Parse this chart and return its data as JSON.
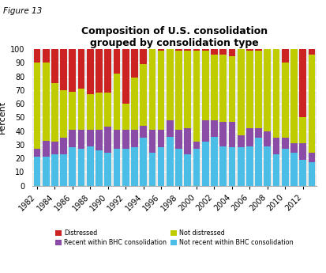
{
  "years": [
    1982,
    1983,
    1984,
    1985,
    1986,
    1987,
    1988,
    1989,
    1990,
    1991,
    1992,
    1993,
    1994,
    1995,
    1996,
    1997,
    1998,
    1999,
    2000,
    2001,
    2002,
    2003,
    2004,
    2005,
    2006,
    2007,
    2008,
    2009,
    2010,
    2011,
    2012,
    2013
  ],
  "not_recent_bhc": [
    21,
    21,
    23,
    23,
    28,
    27,
    29,
    26,
    24,
    27,
    27,
    28,
    35,
    24,
    28,
    36,
    27,
    23,
    27,
    32,
    36,
    29,
    28,
    28,
    29,
    35,
    29,
    23,
    27,
    24,
    19,
    17
  ],
  "recent_bhc": [
    6,
    12,
    9,
    12,
    13,
    14,
    12,
    15,
    19,
    14,
    14,
    13,
    9,
    17,
    13,
    12,
    14,
    19,
    5,
    16,
    12,
    18,
    19,
    9,
    13,
    7,
    11,
    12,
    8,
    7,
    12,
    7
  ],
  "not_distressed": [
    63,
    57,
    43,
    35,
    28,
    30,
    26,
    27,
    25,
    41,
    19,
    38,
    45,
    59,
    58,
    52,
    58,
    57,
    67,
    51,
    48,
    49,
    48,
    63,
    57,
    57,
    60,
    65,
    55,
    69,
    19,
    72
  ],
  "distressed": [
    10,
    10,
    25,
    30,
    31,
    29,
    33,
    32,
    32,
    18,
    40,
    21,
    11,
    0,
    1,
    0,
    1,
    1,
    1,
    1,
    4,
    4,
    5,
    0,
    1,
    1,
    0,
    0,
    10,
    0,
    50,
    4
  ],
  "colors": {
    "not_recent_bhc": "#4bbee8",
    "recent_bhc": "#8b4ca8",
    "not_distressed": "#bfcc00",
    "distressed": "#cc2222"
  },
  "title": "Composition of U.S. consolidation\ngrouped by consolidation type",
  "ylabel": "Percent",
  "figure_label": "Figure 13",
  "ylim": [
    0,
    100
  ],
  "yticks": [
    0,
    10,
    20,
    30,
    40,
    50,
    60,
    70,
    80,
    90,
    100
  ],
  "legend_labels": [
    "Distressed",
    "Recent within BHC consolidation",
    "Not distressed",
    "Not recent within BHC consolidation"
  ]
}
